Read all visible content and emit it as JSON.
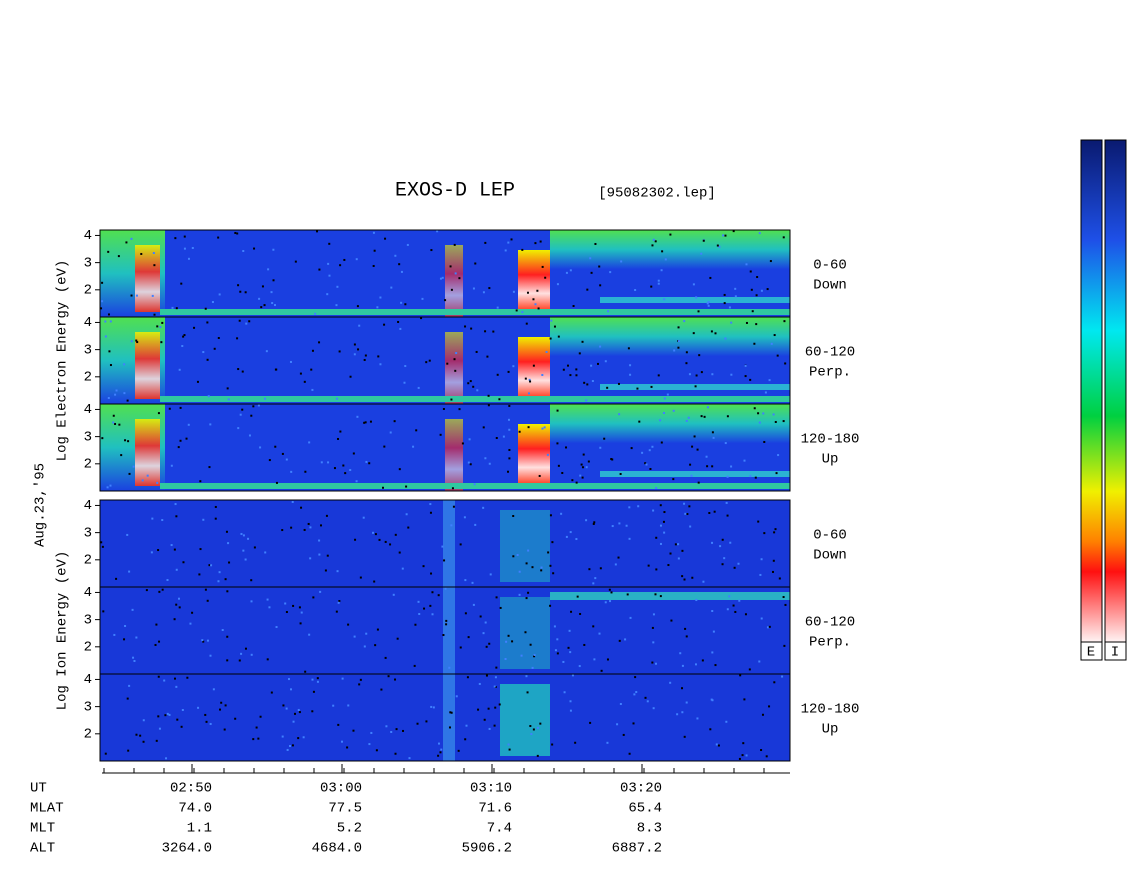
{
  "title": "EXOS-D LEP",
  "file": "[95082302.lep]",
  "date_label": "Aug.23,'95",
  "groups": [
    {
      "ylabel": "Log  Electron  Energy (eV)",
      "panels": [
        {
          "label": "0-60",
          "sublabel": "Down",
          "ylim": [
            1,
            4.2
          ],
          "yticks": [
            2,
            3,
            4
          ]
        },
        {
          "label": "60-120",
          "sublabel": "Perp.",
          "ylim": [
            1,
            4.2
          ],
          "yticks": [
            2,
            3,
            4
          ]
        },
        {
          "label": "120-180",
          "sublabel": "Up",
          "ylim": [
            1,
            4.2
          ],
          "yticks": [
            2,
            3,
            4
          ]
        }
      ]
    },
    {
      "ylabel": "Log  Ion  Energy (eV)",
      "panels": [
        {
          "label": "0-60",
          "sublabel": "Down",
          "ylim": [
            1,
            4.2
          ],
          "yticks": [
            2,
            3,
            4
          ]
        },
        {
          "label": "60-120",
          "sublabel": "Perp.",
          "ylim": [
            1,
            4.2
          ],
          "yticks": [
            2,
            3,
            4
          ]
        },
        {
          "label": "120-180",
          "sublabel": "Up",
          "ylim": [
            1,
            4.2
          ],
          "yticks": [
            2,
            3,
            4
          ]
        }
      ]
    }
  ],
  "rows": [
    [
      "UT",
      "02:50",
      "03:00",
      "03:10",
      "03:20"
    ],
    [
      "MLAT",
      "74.0",
      "77.5",
      "71.6",
      "65.4"
    ],
    [
      "MLT",
      "1.1",
      "5.2",
      "7.4",
      "8.3"
    ],
    [
      "ALT",
      "3264.0",
      "4684.0",
      "5906.2",
      "6887.2"
    ]
  ],
  "colorbar_labels": [
    "E",
    "I"
  ]
}
